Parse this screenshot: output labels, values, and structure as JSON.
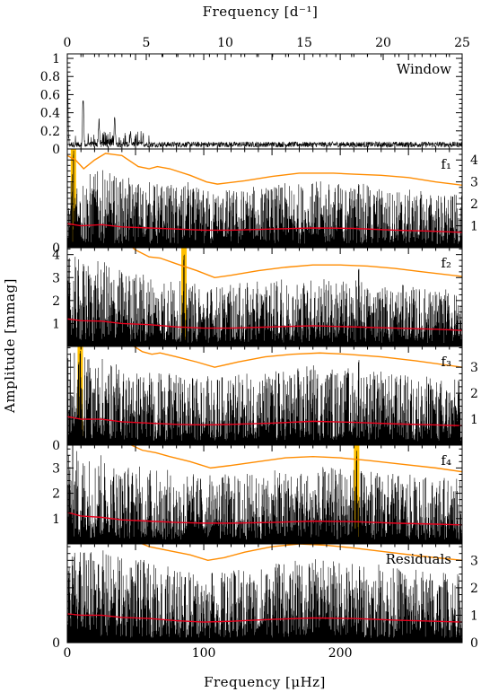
{
  "chart_data": {
    "type": "line",
    "x_axis_bottom": {
      "label": "Frequency [μHz]",
      "range": [
        0,
        289.35
      ],
      "ticks": [
        0,
        100,
        200
      ]
    },
    "x_axis_top": {
      "label": "Frequency [d⁻¹]",
      "range": [
        0,
        25
      ],
      "ticks": [
        0,
        5,
        10,
        15,
        20,
        25
      ]
    },
    "ylabel": "Amplitude [mmag]",
    "panels": [
      {
        "id": "window",
        "label": "Window",
        "ylim": [
          0,
          1.05
        ],
        "yticks_left": [
          "0",
          "0.2",
          "0.4",
          "0.6",
          "0.8",
          "1"
        ],
        "yticks_right": [],
        "window_peaks": [
          {
            "x": 0,
            "y": 1.0
          },
          {
            "x": 11.6,
            "y": 0.65
          },
          {
            "x": 23.2,
            "y": 0.35
          },
          {
            "x": 34.8,
            "y": 0.4
          },
          {
            "x": 46.4,
            "y": 0.2
          }
        ],
        "significance": [],
        "noise": [],
        "highlight": null
      },
      {
        "id": "f1",
        "label": "f₁",
        "ylim": [
          0,
          4.5
        ],
        "yticks_left": [
          "0"
        ],
        "yticks_right": [
          "1",
          "2",
          "3",
          "4"
        ],
        "significance": [
          [
            0,
            4.2
          ],
          [
            6,
            4.0
          ],
          [
            12,
            3.6
          ],
          [
            20,
            4.0
          ],
          [
            28,
            4.3
          ],
          [
            40,
            4.2
          ],
          [
            52,
            3.7
          ],
          [
            60,
            3.6
          ],
          [
            66,
            3.7
          ],
          [
            75,
            3.6
          ],
          [
            90,
            3.3
          ],
          [
            102,
            3.0
          ],
          [
            110,
            2.9
          ],
          [
            130,
            3.05
          ],
          [
            150,
            3.25
          ],
          [
            170,
            3.4
          ],
          [
            195,
            3.4
          ],
          [
            210,
            3.35
          ],
          [
            230,
            3.3
          ],
          [
            250,
            3.2
          ],
          [
            270,
            3.0
          ],
          [
            289.35,
            2.85
          ]
        ],
        "noise": [
          [
            0,
            1.1
          ],
          [
            10,
            1.0
          ],
          [
            25,
            1.05
          ],
          [
            40,
            0.95
          ],
          [
            60,
            0.9
          ],
          [
            80,
            0.85
          ],
          [
            100,
            0.8
          ],
          [
            120,
            0.8
          ],
          [
            150,
            0.85
          ],
          [
            180,
            0.9
          ],
          [
            210,
            0.88
          ],
          [
            240,
            0.8
          ],
          [
            270,
            0.75
          ],
          [
            289.35,
            0.7
          ]
        ],
        "highlight": {
          "x": 4.5,
          "peak": 4.5
        },
        "peaks": [
          {
            "x": 4.5,
            "y": 4.5
          },
          {
            "x": 88.5,
            "y": 3.0
          },
          {
            "x": 213.5,
            "y": 3.3
          }
        ]
      },
      {
        "id": "f2",
        "label": "f₂",
        "ylim": [
          0,
          4.3
        ],
        "yticks_left": [
          "1",
          "2",
          "3",
          "4"
        ],
        "yticks_right": [],
        "significance": [
          [
            0,
            4.7
          ],
          [
            40,
            4.7
          ],
          [
            50,
            4.2
          ],
          [
            60,
            3.9
          ],
          [
            68,
            3.85
          ],
          [
            80,
            3.6
          ],
          [
            95,
            3.3
          ],
          [
            108,
            3.0
          ],
          [
            120,
            3.1
          ],
          [
            140,
            3.3
          ],
          [
            160,
            3.45
          ],
          [
            180,
            3.55
          ],
          [
            200,
            3.55
          ],
          [
            220,
            3.5
          ],
          [
            240,
            3.4
          ],
          [
            260,
            3.25
          ],
          [
            289.35,
            3.05
          ]
        ],
        "noise": [
          [
            0,
            1.2
          ],
          [
            10,
            1.12
          ],
          [
            25,
            1.1
          ],
          [
            40,
            1.0
          ],
          [
            60,
            0.95
          ],
          [
            80,
            0.85
          ],
          [
            100,
            0.8
          ],
          [
            120,
            0.8
          ],
          [
            150,
            0.85
          ],
          [
            180,
            0.9
          ],
          [
            210,
            0.85
          ],
          [
            240,
            0.8
          ],
          [
            270,
            0.75
          ],
          [
            289.35,
            0.7
          ]
        ],
        "highlight": {
          "x": 85.5,
          "peak": 4.0
        },
        "peaks": [
          {
            "x": 85.5,
            "y": 4.0
          },
          {
            "x": 213.5,
            "y": 3.4
          }
        ]
      },
      {
        "id": "f3",
        "label": "f₃",
        "ylim": [
          0,
          3.8
        ],
        "yticks_left": [
          "0"
        ],
        "yticks_right": [
          "1",
          "2",
          "3"
        ],
        "significance": [
          [
            0,
            4.3
          ],
          [
            40,
            4.3
          ],
          [
            46,
            3.9
          ],
          [
            55,
            3.6
          ],
          [
            62,
            3.5
          ],
          [
            68,
            3.55
          ],
          [
            80,
            3.4
          ],
          [
            95,
            3.2
          ],
          [
            108,
            3.0
          ],
          [
            125,
            3.2
          ],
          [
            145,
            3.4
          ],
          [
            165,
            3.5
          ],
          [
            185,
            3.55
          ],
          [
            205,
            3.5
          ],
          [
            230,
            3.4
          ],
          [
            255,
            3.25
          ],
          [
            289.35,
            3.0
          ]
        ],
        "noise": [
          [
            0,
            1.1
          ],
          [
            10,
            1.0
          ],
          [
            25,
            1.0
          ],
          [
            40,
            0.9
          ],
          [
            60,
            0.85
          ],
          [
            80,
            0.8
          ],
          [
            100,
            0.78
          ],
          [
            120,
            0.8
          ],
          [
            150,
            0.85
          ],
          [
            180,
            0.92
          ],
          [
            210,
            0.88
          ],
          [
            240,
            0.82
          ],
          [
            270,
            0.78
          ],
          [
            289.35,
            0.75
          ]
        ],
        "highlight": {
          "x": 9.5,
          "peak": 3.8
        },
        "peaks": [
          {
            "x": 9.5,
            "y": 3.8
          },
          {
            "x": 213.5,
            "y": 3.4
          }
        ]
      },
      {
        "id": "f4",
        "label": "f₄",
        "ylim": [
          0,
          3.9
        ],
        "yticks_left": [
          "1",
          "2",
          "3"
        ],
        "yticks_right": [],
        "significance": [
          [
            0,
            4.5
          ],
          [
            40,
            4.5
          ],
          [
            45,
            3.95
          ],
          [
            55,
            3.7
          ],
          [
            65,
            3.6
          ],
          [
            75,
            3.45
          ],
          [
            90,
            3.25
          ],
          [
            105,
            3.0
          ],
          [
            120,
            3.1
          ],
          [
            140,
            3.25
          ],
          [
            160,
            3.4
          ],
          [
            180,
            3.45
          ],
          [
            200,
            3.4
          ],
          [
            220,
            3.3
          ],
          [
            245,
            3.15
          ],
          [
            270,
            3.0
          ],
          [
            289.35,
            2.85
          ]
        ],
        "noise": [
          [
            0,
            1.25
          ],
          [
            10,
            1.1
          ],
          [
            25,
            1.05
          ],
          [
            40,
            0.95
          ],
          [
            60,
            0.9
          ],
          [
            80,
            0.85
          ],
          [
            100,
            0.82
          ],
          [
            120,
            0.82
          ],
          [
            150,
            0.85
          ],
          [
            180,
            0.9
          ],
          [
            210,
            0.88
          ],
          [
            240,
            0.82
          ],
          [
            270,
            0.78
          ],
          [
            289.35,
            0.75
          ]
        ],
        "highlight": {
          "x": 212,
          "peak": 3.8
        },
        "peaks": [
          {
            "x": 212,
            "y": 3.8
          }
        ]
      },
      {
        "id": "residuals",
        "label": "Residuals",
        "ylim": [
          0,
          3.6
        ],
        "yticks_left": [
          "0"
        ],
        "yticks_right": [
          "0",
          "1",
          "2",
          "3"
        ],
        "significance": [
          [
            0,
            4.2
          ],
          [
            40,
            4.2
          ],
          [
            50,
            3.7
          ],
          [
            60,
            3.5
          ],
          [
            75,
            3.35
          ],
          [
            90,
            3.2
          ],
          [
            103,
            3.0
          ],
          [
            115,
            3.1
          ],
          [
            130,
            3.3
          ],
          [
            150,
            3.5
          ],
          [
            170,
            3.6
          ],
          [
            190,
            3.55
          ],
          [
            210,
            3.45
          ],
          [
            235,
            3.3
          ],
          [
            260,
            3.15
          ],
          [
            289.35,
            3.0
          ]
        ],
        "noise": [
          [
            0,
            1.05
          ],
          [
            10,
            1.0
          ],
          [
            25,
            1.0
          ],
          [
            40,
            0.92
          ],
          [
            60,
            0.88
          ],
          [
            80,
            0.8
          ],
          [
            100,
            0.75
          ],
          [
            120,
            0.78
          ],
          [
            150,
            0.85
          ],
          [
            180,
            0.9
          ],
          [
            210,
            0.88
          ],
          [
            240,
            0.82
          ],
          [
            270,
            0.78
          ],
          [
            289.35,
            0.75
          ]
        ],
        "highlight": null,
        "peaks": []
      }
    ],
    "colors": {
      "spectrum": "#000000",
      "significance": "#ff8c00",
      "noise": "#e8001c",
      "highlight": "#ffc000"
    }
  }
}
